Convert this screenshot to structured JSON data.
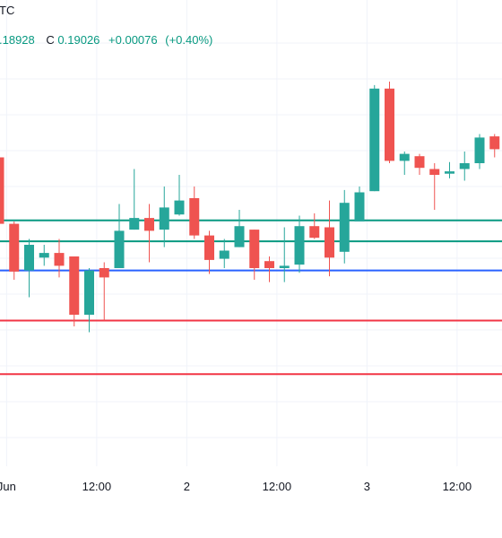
{
  "header": {
    "symbol_fragment": "TC",
    "low_fragment": ".18928",
    "close_label": "C",
    "close_value": "0.19026",
    "change": "+0.00076",
    "change_pct": "(+0.40%)"
  },
  "colors": {
    "up": "#26a69a",
    "down": "#ef5350",
    "header_green": "#089981",
    "level_green": "#089981",
    "level_blue": "#2962ff",
    "level_red": "#f23645",
    "grid": "#f0f3fa"
  },
  "chart_data": {
    "type": "candlestick",
    "xlabel": "",
    "ylabel": "",
    "x_ticks": [
      {
        "label": "Jun",
        "index": 0.5
      },
      {
        "label": "12:00",
        "index": 6.5
      },
      {
        "label": "2",
        "index": 12.5
      },
      {
        "label": "12:00",
        "index": 18.5
      },
      {
        "label": "3",
        "index": 24.5
      },
      {
        "label": "12:00",
        "index": 30.5
      }
    ],
    "ylim": [
      0.17,
      0.21
    ],
    "levels": [
      {
        "value": 0.1911,
        "color": "green"
      },
      {
        "value": 0.1893,
        "color": "green"
      },
      {
        "value": 0.1868,
        "color": "blue"
      },
      {
        "value": 0.1825,
        "color": "red"
      },
      {
        "value": 0.1779,
        "color": "red"
      }
    ],
    "candles": [
      {
        "o": 0.1965,
        "h": 0.1975,
        "l": 0.1905,
        "c": 0.1908
      },
      {
        "o": 0.1908,
        "h": 0.191,
        "l": 0.186,
        "c": 0.1867
      },
      {
        "o": 0.1868,
        "h": 0.1895,
        "l": 0.1845,
        "c": 0.189
      },
      {
        "o": 0.1879,
        "h": 0.189,
        "l": 0.1872,
        "c": 0.1883
      },
      {
        "o": 0.1883,
        "h": 0.1895,
        "l": 0.1862,
        "c": 0.1872
      },
      {
        "o": 0.188,
        "h": 0.188,
        "l": 0.182,
        "c": 0.183
      },
      {
        "o": 0.183,
        "h": 0.187,
        "l": 0.1815,
        "c": 0.1868
      },
      {
        "o": 0.187,
        "h": 0.1875,
        "l": 0.1825,
        "c": 0.1862
      },
      {
        "o": 0.187,
        "h": 0.1925,
        "l": 0.187,
        "c": 0.1902
      },
      {
        "o": 0.1903,
        "h": 0.1955,
        "l": 0.1903,
        "c": 0.1913
      },
      {
        "o": 0.1913,
        "h": 0.1925,
        "l": 0.1875,
        "c": 0.1902
      },
      {
        "o": 0.1903,
        "h": 0.194,
        "l": 0.1888,
        "c": 0.1922
      },
      {
        "o": 0.1916,
        "h": 0.195,
        "l": 0.1915,
        "c": 0.1928
      },
      {
        "o": 0.193,
        "h": 0.194,
        "l": 0.1895,
        "c": 0.1898
      },
      {
        "o": 0.1898,
        "h": 0.1902,
        "l": 0.1865,
        "c": 0.1877
      },
      {
        "o": 0.1878,
        "h": 0.1895,
        "l": 0.187,
        "c": 0.1885
      },
      {
        "o": 0.1888,
        "h": 0.192,
        "l": 0.1888,
        "c": 0.1906
      },
      {
        "o": 0.1903,
        "h": 0.1903,
        "l": 0.186,
        "c": 0.187
      },
      {
        "o": 0.1876,
        "h": 0.188,
        "l": 0.1858,
        "c": 0.187
      },
      {
        "o": 0.187,
        "h": 0.1905,
        "l": 0.1858,
        "c": 0.1872
      },
      {
        "o": 0.1873,
        "h": 0.1915,
        "l": 0.1866,
        "c": 0.1906
      },
      {
        "o": 0.1906,
        "h": 0.1917,
        "l": 0.1895,
        "c": 0.1896
      },
      {
        "o": 0.1905,
        "h": 0.1928,
        "l": 0.1863,
        "c": 0.1879
      },
      {
        "o": 0.1884,
        "h": 0.1937,
        "l": 0.1874,
        "c": 0.1926
      },
      {
        "o": 0.191,
        "h": 0.194,
        "l": 0.191,
        "c": 0.1935
      },
      {
        "o": 0.1936,
        "h": 0.2027,
        "l": 0.1936,
        "c": 0.2024
      },
      {
        "o": 0.2024,
        "h": 0.203,
        "l": 0.196,
        "c": 0.1962
      },
      {
        "o": 0.1962,
        "h": 0.197,
        "l": 0.195,
        "c": 0.1968
      },
      {
        "o": 0.1966,
        "h": 0.1968,
        "l": 0.195,
        "c": 0.1956
      },
      {
        "o": 0.1955,
        "h": 0.196,
        "l": 0.192,
        "c": 0.195
      },
      {
        "o": 0.1951,
        "h": 0.1961,
        "l": 0.1947,
        "c": 0.1953
      },
      {
        "o": 0.1955,
        "h": 0.197,
        "l": 0.1945,
        "c": 0.196
      },
      {
        "o": 0.196,
        "h": 0.1985,
        "l": 0.1955,
        "c": 0.1982
      },
      {
        "o": 0.1983,
        "h": 0.1985,
        "l": 0.1965,
        "c": 0.1972
      }
    ]
  }
}
